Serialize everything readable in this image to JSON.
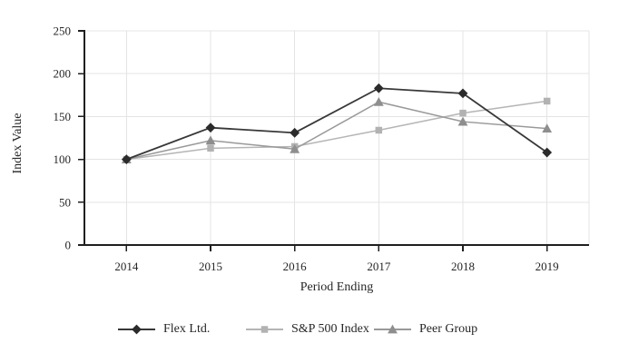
{
  "chart_data": {
    "type": "line",
    "title": "",
    "xlabel": "Period Ending",
    "ylabel": "Index Value",
    "categories": [
      "2014",
      "2015",
      "2016",
      "2017",
      "2018",
      "2019"
    ],
    "series": [
      {
        "name": "Flex Ltd.",
        "marker": "diamond",
        "color": "#383838",
        "marker_color": "#2b2b2b",
        "values": [
          100,
          137,
          131,
          183,
          177,
          108
        ]
      },
      {
        "name": "S&P 500 Index",
        "marker": "square",
        "color": "#b5b5b5",
        "marker_color": "#b2b2b2",
        "values": [
          100,
          113,
          115,
          134,
          154,
          168
        ]
      },
      {
        "name": "Peer Group",
        "marker": "triangle",
        "color": "#999999",
        "marker_color": "#8e8e8e",
        "values": [
          100,
          122,
          112,
          167,
          144,
          136
        ]
      }
    ],
    "ylim": [
      0,
      250
    ],
    "ytick_step": 50,
    "grid": true,
    "legend_position": "bottom"
  },
  "colors": {
    "background": "#ffffff",
    "grid": "#e4e4e4",
    "axis": "#1f1f1f",
    "text": "#262626"
  }
}
